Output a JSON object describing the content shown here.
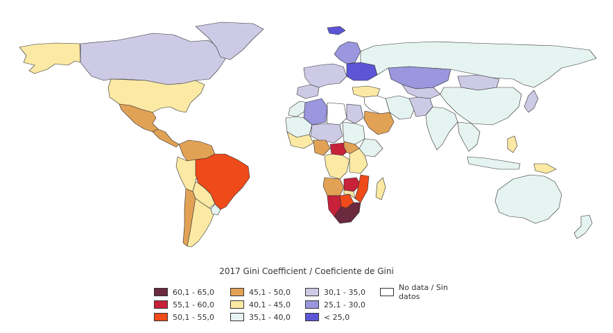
{
  "legend": {
    "title": "2017 Gini Coefficient / Coeficiente de Gini",
    "items": [
      {
        "label": "60,1 - 65,0",
        "color": "#6b2a3e"
      },
      {
        "label": "55,1 - 60,0",
        "color": "#c8213a"
      },
      {
        "label": "50,1 - 55,0",
        "color": "#ee4a1a"
      },
      {
        "label": "45,1 - 50,0",
        "color": "#e1a256"
      },
      {
        "label": "40,1 - 45,0",
        "color": "#fbe9a4"
      },
      {
        "label": "35,1 - 40,0",
        "color": "#e6f4f1"
      },
      {
        "label": "30,1 - 35,0",
        "color": "#cdcae6"
      },
      {
        "label": "25,1 - 30,0",
        "color": "#9a97de"
      },
      {
        "label": "< 25,0",
        "color": "#5c56d6"
      },
      {
        "label": "No data / Sin datos",
        "color": "#ffffff"
      }
    ]
  },
  "regions": [
    {
      "name": "alaska",
      "bin": "40,1 - 45,0"
    },
    {
      "name": "canada",
      "bin": "30,1 - 35,0"
    },
    {
      "name": "greenland",
      "bin": "30,1 - 35,0"
    },
    {
      "name": "usa",
      "bin": "40,1 - 45,0"
    },
    {
      "name": "mexico",
      "bin": "45,1 - 50,0"
    },
    {
      "name": "central-america",
      "bin": "45,1 - 50,0"
    },
    {
      "name": "colombia-venezuela",
      "bin": "45,1 - 50,0"
    },
    {
      "name": "peru-ecuador",
      "bin": "40,1 - 45,0"
    },
    {
      "name": "brazil",
      "bin": "50,1 - 55,0"
    },
    {
      "name": "bolivia-paraguay",
      "bin": "40,1 - 45,0"
    },
    {
      "name": "chile",
      "bin": "45,1 - 50,0"
    },
    {
      "name": "argentina",
      "bin": "40,1 - 45,0"
    },
    {
      "name": "uruguay",
      "bin": "35,1 - 40,0"
    },
    {
      "name": "iceland",
      "bin": "< 25,0"
    },
    {
      "name": "scandinavia",
      "bin": "25,1 - 30,0"
    },
    {
      "name": "western-europe",
      "bin": "30,1 - 35,0"
    },
    {
      "name": "iberia",
      "bin": "30,1 - 35,0"
    },
    {
      "name": "eastern-europe",
      "bin": "< 25,0"
    },
    {
      "name": "russia",
      "bin": "35,1 - 40,0"
    },
    {
      "name": "kazakhstan",
      "bin": "25,1 - 30,0"
    },
    {
      "name": "mongolia",
      "bin": "30,1 - 35,0"
    },
    {
      "name": "china",
      "bin": "35,1 - 40,0"
    },
    {
      "name": "central-asia",
      "bin": "30,1 - 35,0"
    },
    {
      "name": "iran",
      "bin": "35,1 - 40,0"
    },
    {
      "name": "turkey",
      "bin": "40,1 - 45,0"
    },
    {
      "name": "middle-east",
      "bin": "No data / Sin datos"
    },
    {
      "name": "saudi-arabia",
      "bin": "45,1 - 50,0"
    },
    {
      "name": "pakistan-afghanistan",
      "bin": "30,1 - 35,0"
    },
    {
      "name": "india",
      "bin": "35,1 - 40,0"
    },
    {
      "name": "southeast-asia",
      "bin": "35,1 - 40,0"
    },
    {
      "name": "japan",
      "bin": "30,1 - 35,0"
    },
    {
      "name": "philippines",
      "bin": "40,1 - 45,0"
    },
    {
      "name": "indonesia",
      "bin": "35,1 - 40,0"
    },
    {
      "name": "papua-new-guinea",
      "bin": "40,1 - 45,0"
    },
    {
      "name": "australia",
      "bin": "35,1 - 40,0"
    },
    {
      "name": "new-zealand",
      "bin": "35,1 - 40,0"
    },
    {
      "name": "morocco",
      "bin": "35,1 - 40,0"
    },
    {
      "name": "algeria",
      "bin": "25,1 - 30,0"
    },
    {
      "name": "libya",
      "bin": "No data / Sin datos"
    },
    {
      "name": "egypt",
      "bin": "30,1 - 35,0"
    },
    {
      "name": "sahel-west",
      "bin": "35,1 - 40,0"
    },
    {
      "name": "niger-chad",
      "bin": "30,1 - 35,0"
    },
    {
      "name": "sudan",
      "bin": "35,1 - 40,0"
    },
    {
      "name": "west-africa-coast",
      "bin": "40,1 - 45,0"
    },
    {
      "name": "nigeria",
      "bin": "45,1 - 50,0"
    },
    {
      "name": "central-african-rep",
      "bin": "55,1 - 60,0"
    },
    {
      "name": "ethiopia",
      "bin": "35,1 - 40,0"
    },
    {
      "name": "south-sudan",
      "bin": "45,1 - 50,0"
    },
    {
      "name": "dr-congo",
      "bin": "40,1 - 45,0"
    },
    {
      "name": "east-africa",
      "bin": "40,1 - 45,0"
    },
    {
      "name": "angola",
      "bin": "45,1 - 50,0"
    },
    {
      "name": "zambia",
      "bin": "55,1 - 60,0"
    },
    {
      "name": "mozambique",
      "bin": "50,1 - 55,0"
    },
    {
      "name": "namibia",
      "bin": "55,1 - 60,0"
    },
    {
      "name": "botswana",
      "bin": "50,1 - 55,0"
    },
    {
      "name": "zimbabwe",
      "bin": "40,1 - 45,0"
    },
    {
      "name": "south-africa",
      "bin": "60,1 - 65,0"
    },
    {
      "name": "madagascar",
      "bin": "40,1 - 45,0"
    }
  ]
}
